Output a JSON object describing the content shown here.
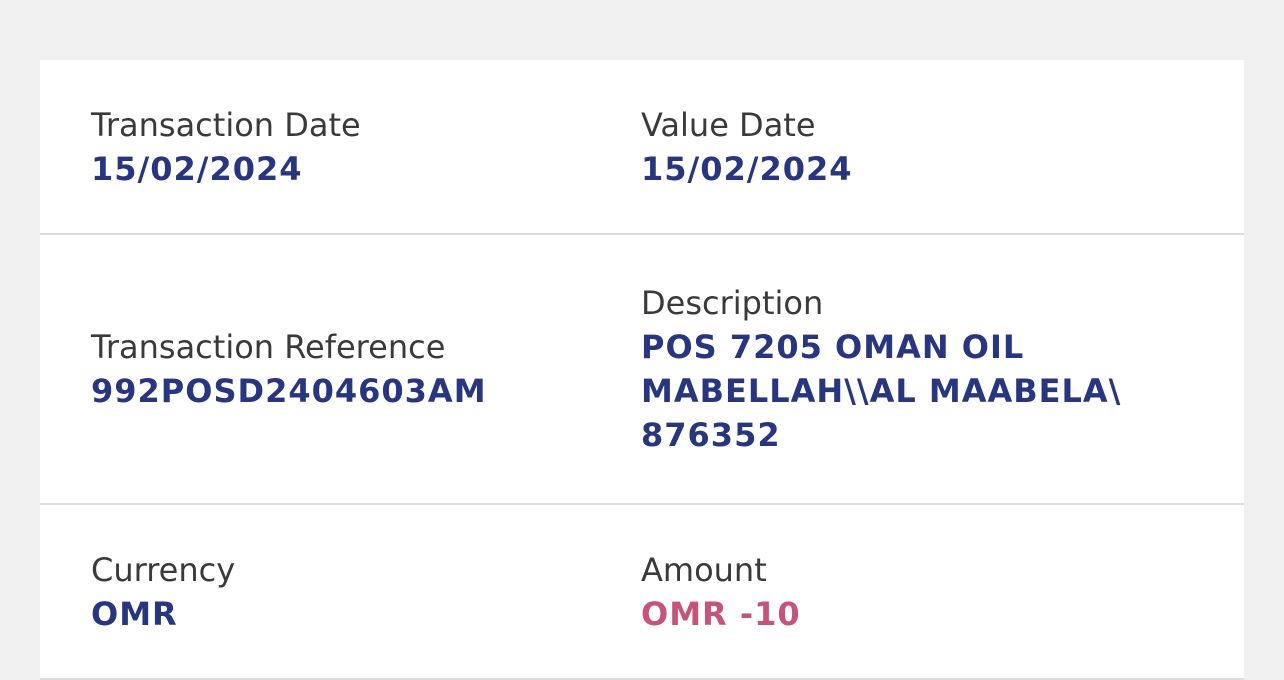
{
  "rows": [
    [
      {
        "label": "Transaction Date",
        "value": [
          "15/02/2024"
        ]
      },
      {
        "label": "Value Date",
        "value": [
          "15/02/2024"
        ]
      }
    ],
    [
      {
        "label": "Transaction Reference",
        "value": [
          "992POSD2404603AM"
        ]
      },
      {
        "label": "Description",
        "value": [
          "POS 7205 OMAN OIL",
          "MABELLAH\\\\AL MAABELA\\",
          "876352"
        ]
      }
    ],
    [
      {
        "label": "Currency",
        "value": [
          "OMR"
        ]
      },
      {
        "label": "Amount",
        "value": [
          "OMR -10"
        ],
        "highlight": true
      }
    ]
  ]
}
